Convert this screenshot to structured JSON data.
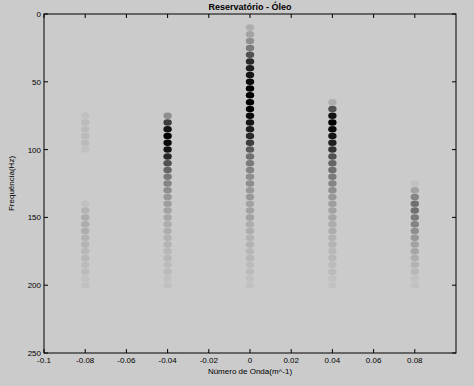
{
  "chart_data": {
    "type": "heatmap",
    "title": "Reservatório - Óleo",
    "x_label": "Número de Onda(m^-1)",
    "y_label": "Frequência(Hz)",
    "xlim": [
      -0.1,
      0.1
    ],
    "xticks": [
      -0.1,
      -0.08,
      -0.06,
      -0.04,
      -0.02,
      0,
      0.02,
      0.04,
      0.06,
      0.08
    ],
    "ylim": [
      0,
      250
    ],
    "yticks": [
      0,
      50,
      100,
      150,
      200,
      250
    ],
    "x": [
      -0.08,
      -0.04,
      0,
      0.04,
      0.08
    ],
    "y": [
      10,
      15,
      20,
      25,
      30,
      35,
      40,
      45,
      50,
      55,
      60,
      65,
      70,
      75,
      80,
      85,
      90,
      95,
      100,
      105,
      110,
      115,
      120,
      125,
      130,
      135,
      140,
      145,
      150,
      155,
      160,
      165,
      170,
      175,
      180,
      185,
      190,
      195,
      200
    ],
    "cells": [
      [
        0,
        0,
        0.15,
        0,
        0
      ],
      [
        0,
        0,
        0.2,
        0,
        0
      ],
      [
        0,
        0,
        0.3,
        0,
        0
      ],
      [
        0,
        0,
        0.4,
        0,
        0
      ],
      [
        0,
        0,
        0.6,
        0,
        0
      ],
      [
        0,
        0,
        0.8,
        0,
        0
      ],
      [
        0,
        0,
        0.85,
        0,
        0
      ],
      [
        0,
        0,
        0.9,
        0,
        0
      ],
      [
        0,
        0,
        0.95,
        0,
        0
      ],
      [
        0,
        0,
        1,
        0,
        0
      ],
      [
        0,
        0,
        1,
        0,
        0
      ],
      [
        0,
        0,
        1,
        0.15,
        0
      ],
      [
        0,
        0,
        1,
        0.6,
        0
      ],
      [
        0.05,
        0.3,
        0.95,
        0.9,
        0
      ],
      [
        0.08,
        0.7,
        0.9,
        1,
        0
      ],
      [
        0.08,
        0.9,
        0.85,
        0.95,
        0
      ],
      [
        0.08,
        1,
        0.8,
        0.9,
        0
      ],
      [
        0.08,
        0.95,
        0.7,
        0.85,
        0
      ],
      [
        0.05,
        0.9,
        0.55,
        0.75,
        0
      ],
      [
        0,
        0.8,
        0.45,
        0.6,
        0
      ],
      [
        0,
        0.6,
        0.4,
        0.5,
        0
      ],
      [
        0,
        0.5,
        0.35,
        0.45,
        0
      ],
      [
        0,
        0.4,
        0.3,
        0.4,
        0
      ],
      [
        0,
        0.35,
        0.3,
        0.35,
        0.05
      ],
      [
        0,
        0.3,
        0.25,
        0.3,
        0.2
      ],
      [
        0,
        0.25,
        0.25,
        0.25,
        0.35
      ],
      [
        0.05,
        0.22,
        0.2,
        0.22,
        0.45
      ],
      [
        0.12,
        0.2,
        0.2,
        0.2,
        0.45
      ],
      [
        0.15,
        0.18,
        0.2,
        0.18,
        0.4
      ],
      [
        0.15,
        0.15,
        0.15,
        0.15,
        0.35
      ],
      [
        0.15,
        0.15,
        0.15,
        0.15,
        0.3
      ],
      [
        0.12,
        0.12,
        0.12,
        0.12,
        0.25
      ],
      [
        0.12,
        0.12,
        0.12,
        0.12,
        0.2
      ],
      [
        0.1,
        0.1,
        0.1,
        0.1,
        0.18
      ],
      [
        0.1,
        0.1,
        0.1,
        0.1,
        0.15
      ],
      [
        0.08,
        0.08,
        0.08,
        0.08,
        0.12
      ],
      [
        0.08,
        0.08,
        0.08,
        0.08,
        0.1
      ],
      [
        0.05,
        0.05,
        0.05,
        0.05,
        0.05
      ],
      [
        0.05,
        0.05,
        0.05,
        0.05,
        0.05
      ]
    ],
    "grid": false
  }
}
